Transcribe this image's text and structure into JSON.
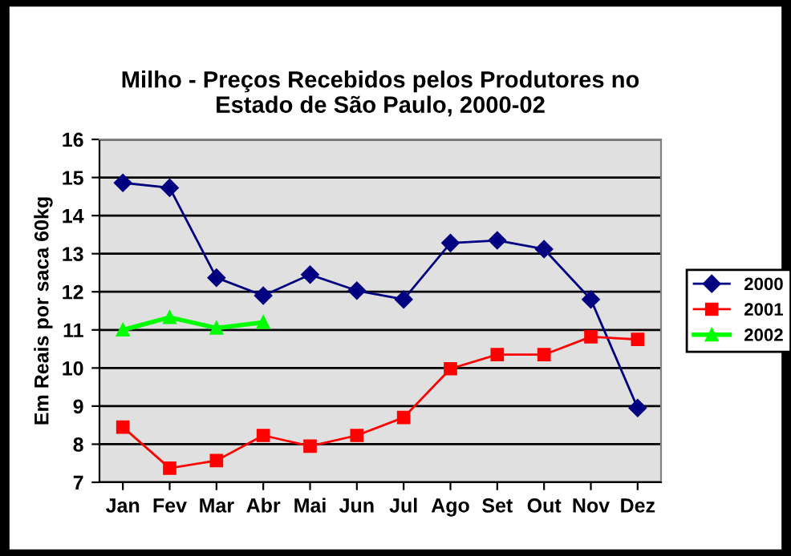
{
  "chart_data": {
    "type": "line",
    "title": "Milho - Preços Recebidos pelos Produtores no\nEstado de São Paulo, 2000-02",
    "ylabel": "Em Reais por saca 60kg",
    "categories": [
      "Jan",
      "Fev",
      "Mar",
      "Abr",
      "Mai",
      "Jun",
      "Jul",
      "Ago",
      "Set",
      "Out",
      "Nov",
      "Dez"
    ],
    "series": [
      {
        "name": "2000",
        "color": "#000080",
        "marker": "diamond",
        "values": [
          14.86,
          14.73,
          12.37,
          11.9,
          12.45,
          12.03,
          11.8,
          13.28,
          13.35,
          13.12,
          11.8,
          8.95
        ]
      },
      {
        "name": "2001",
        "color": "#ff0000",
        "marker": "square",
        "values": [
          8.45,
          7.37,
          7.57,
          8.23,
          7.95,
          8.23,
          8.7,
          9.98,
          10.35,
          10.35,
          10.82,
          10.75
        ]
      },
      {
        "name": "2002",
        "color": "#00ff00",
        "marker": "triangle",
        "values": [
          11.0,
          11.33,
          11.05,
          11.2,
          null,
          null,
          null,
          null,
          null,
          null,
          null,
          null
        ]
      }
    ],
    "ylim": [
      7,
      16
    ],
    "yticks": [
      7,
      8,
      9,
      10,
      11,
      12,
      13,
      14,
      15,
      16
    ],
    "grid": "y",
    "legend": "right"
  }
}
